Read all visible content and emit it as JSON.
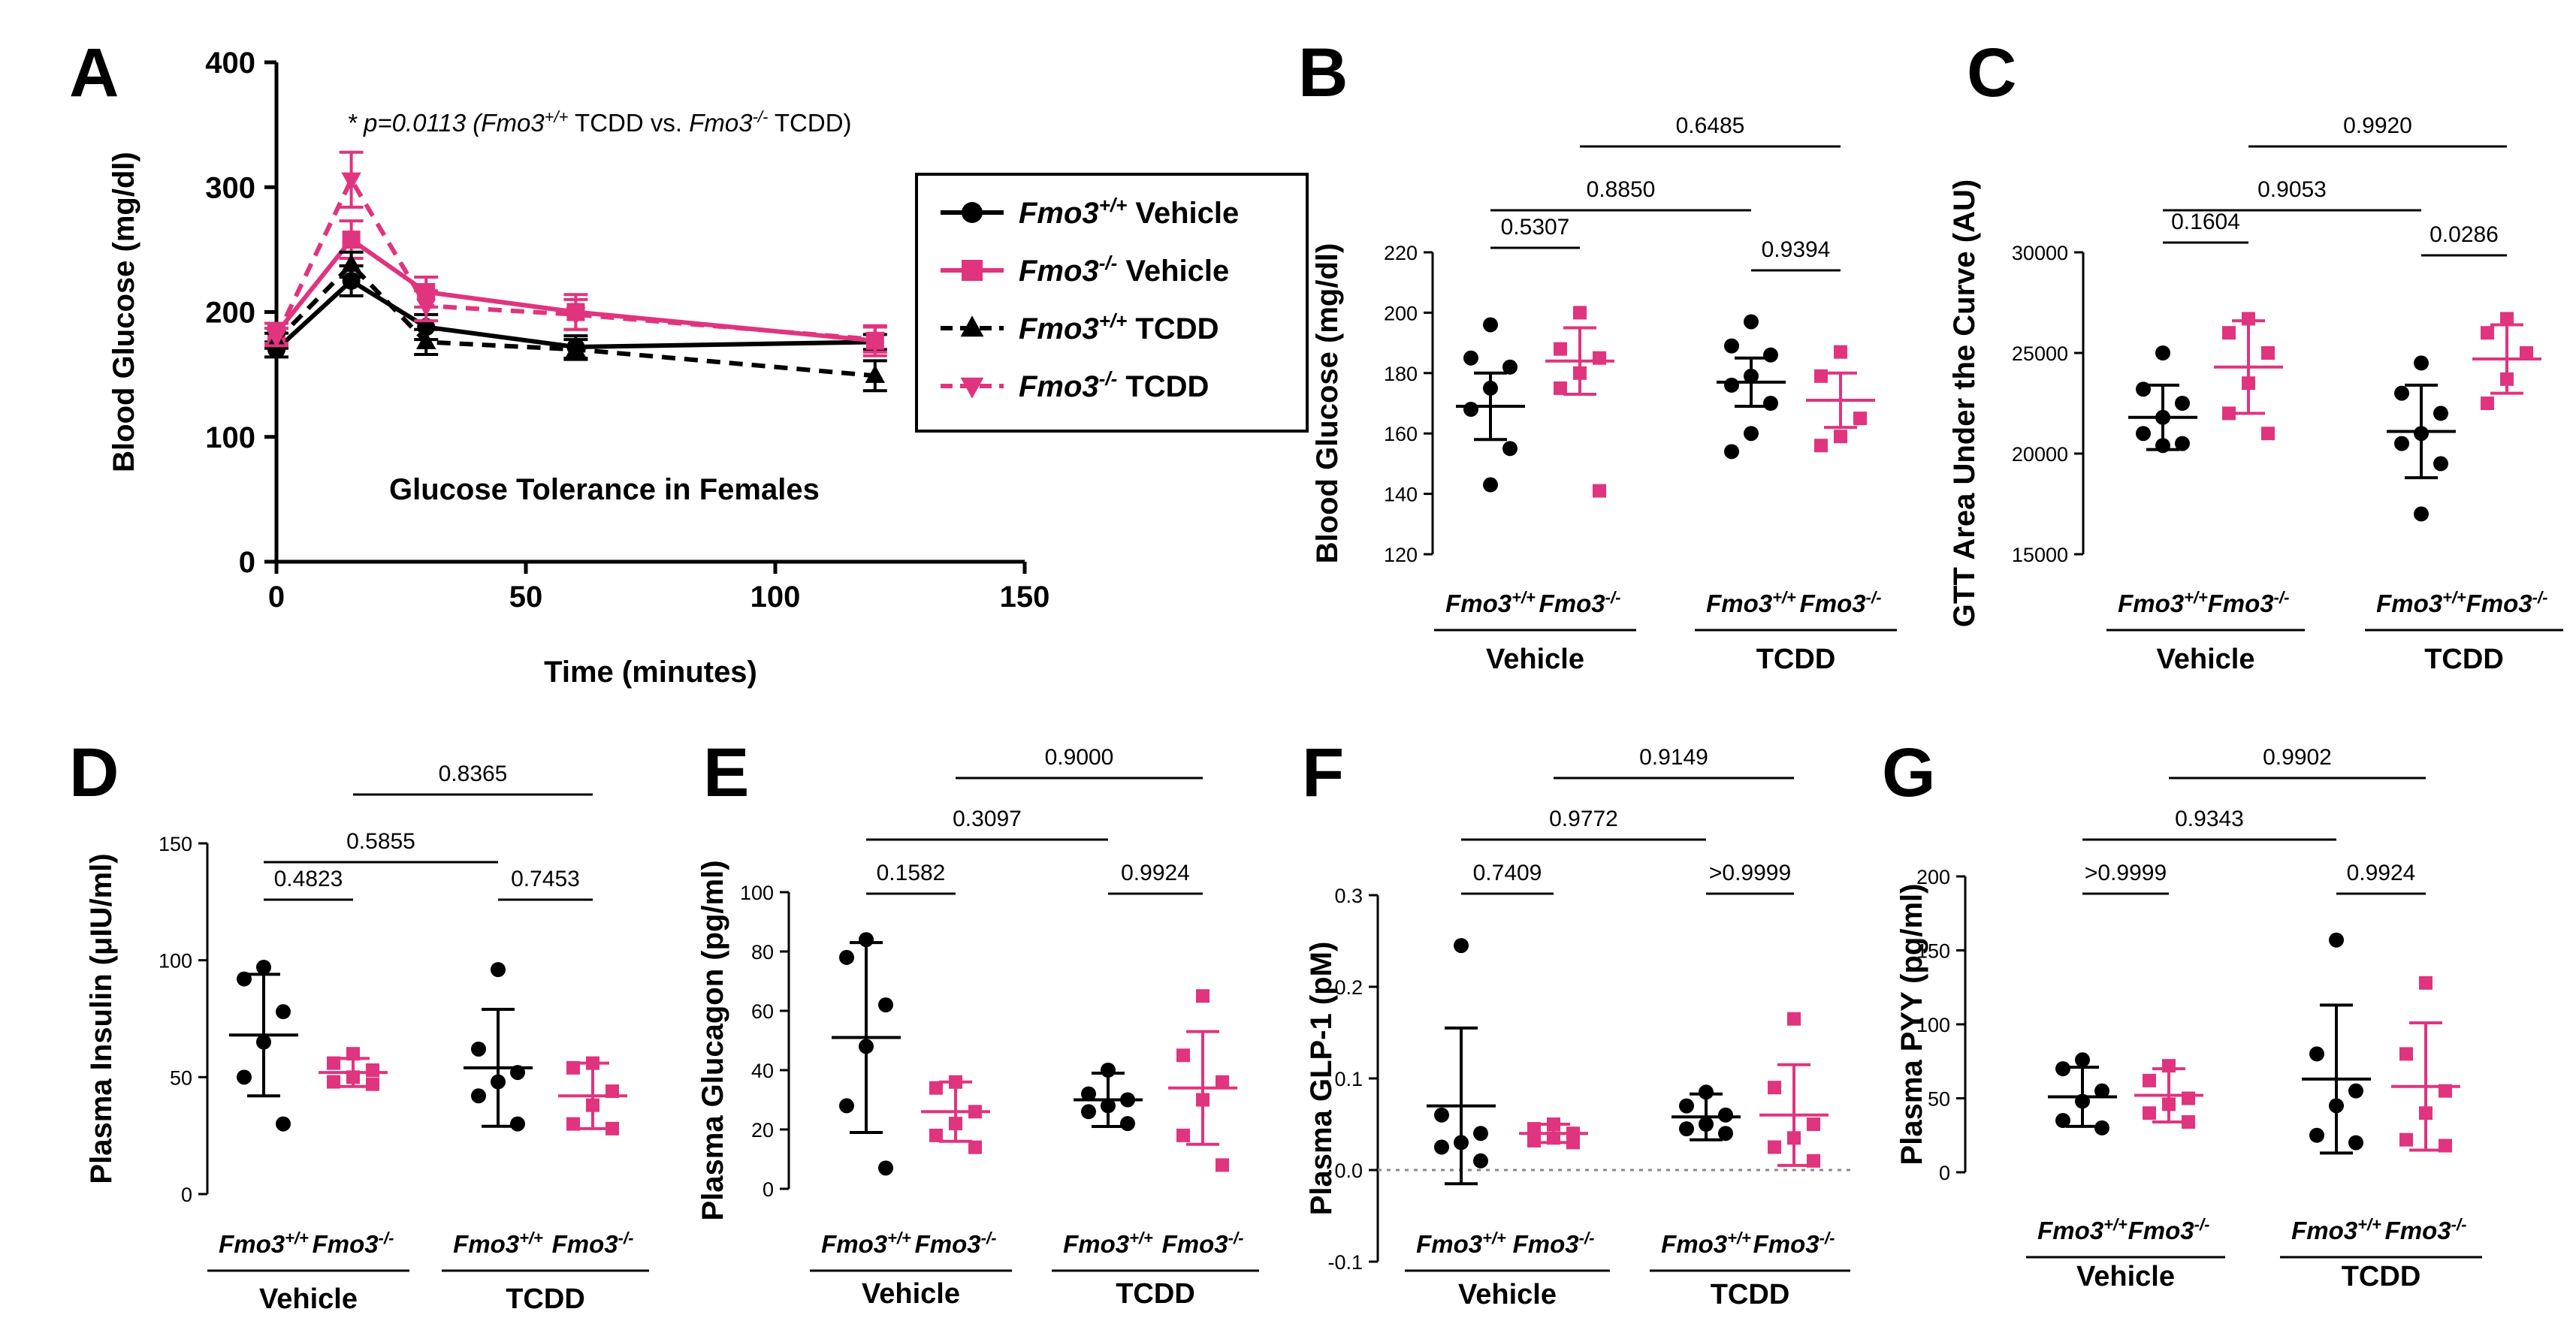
{
  "colors": {
    "wt": "#000000",
    "ko": "#e0347e"
  },
  "chart_data": [
    {
      "panel": "A",
      "type": "line",
      "title": "Glucose Tolerance in Females",
      "annotation": {
        "prefix": "* p=0.0113",
        "open": "(",
        "g1": "Fmo3",
        "g1sup": "+/+",
        "mid": " TCDD vs. ",
        "g2": "Fmo3",
        "g2sup": "-/-",
        "end": " TCDD)"
      },
      "xlabel": "Time (minutes)",
      "ylabel": "Blood Glucose (mg/dl)",
      "xlim": [
        0,
        150
      ],
      "ylim": [
        0,
        400
      ],
      "xticks": [
        0,
        50,
        100,
        150
      ],
      "yticks": [
        0,
        100,
        200,
        300,
        400
      ],
      "x": [
        0,
        15,
        30,
        60,
        120
      ],
      "series": [
        {
          "name": "Fmo3+/+ Vehicle",
          "geno": "Fmo3",
          "sup": "+/+",
          "treat": " Vehicle",
          "color_key": "wt",
          "dashed": false,
          "marker": "circle",
          "values": [
            170,
            225,
            188,
            172,
            176
          ],
          "err": [
            6,
            12,
            10,
            9,
            6
          ]
        },
        {
          "name": "Fmo3-/- Vehicle",
          "geno": "Fmo3",
          "sup": "-/-",
          "treat": " Vehicle",
          "color_key": "ko",
          "dashed": false,
          "marker": "square",
          "values": [
            183,
            258,
            216,
            200,
            177
          ],
          "err": [
            8,
            15,
            12,
            14,
            12
          ]
        },
        {
          "name": "Fmo3+/+ TCDD",
          "geno": "Fmo3",
          "sup": "+/+",
          "treat": " TCDD",
          "color_key": "wt",
          "dashed": true,
          "marker": "triangle-up",
          "values": [
            177,
            238,
            176,
            170,
            149
          ],
          "err": [
            6,
            10,
            10,
            8,
            12
          ]
        },
        {
          "name": "Fmo3-/- TCDD",
          "geno": "Fmo3",
          "sup": "-/-",
          "treat": " TCDD",
          "color_key": "ko",
          "dashed": true,
          "marker": "triangle-down",
          "values": [
            180,
            306,
            205,
            198,
            178
          ],
          "err": [
            7,
            22,
            12,
            12,
            10
          ]
        }
      ]
    },
    {
      "panel": "B",
      "type": "scatter",
      "ylabel": "Blood Glucose (mg/dl)",
      "ylim": [
        120,
        220
      ],
      "yticks": [
        120,
        140,
        160,
        180,
        200,
        220
      ],
      "groups": [
        "Vehicle",
        "TCDD"
      ],
      "genotypes": [
        {
          "name": "Fmo3",
          "sup": "+/+"
        },
        {
          "name": "Fmo3",
          "sup": "-/-"
        }
      ],
      "columns": [
        {
          "mean": 169,
          "sd": 11,
          "points": [
            196,
            185,
            182,
            175,
            168,
            155,
            143
          ]
        },
        {
          "mean": 184,
          "sd": 11,
          "points": [
            200,
            188,
            185,
            180,
            175,
            141
          ]
        },
        {
          "mean": 177,
          "sd": 8,
          "points": [
            197,
            189,
            186,
            179,
            176,
            170,
            160,
            154
          ]
        },
        {
          "mean": 171,
          "sd": 9,
          "points": [
            187,
            179,
            165,
            159,
            156
          ]
        }
      ],
      "comparisons": [
        {
          "a": 0,
          "b": 1,
          "label": "0.5307"
        },
        {
          "a": 2,
          "b": 3,
          "label": "0.9394"
        },
        {
          "a": 0,
          "b": 2,
          "label": "0.8850"
        },
        {
          "a": 1,
          "b": 3,
          "label": "0.6485"
        }
      ]
    },
    {
      "panel": "C",
      "type": "scatter",
      "ylabel": "GTT Area Under the Curve (AU)",
      "ylim": [
        15000,
        30000
      ],
      "yticks": [
        15000,
        20000,
        25000,
        30000
      ],
      "groups": [
        "Vehicle",
        "TCDD"
      ],
      "genotypes": [
        {
          "name": "Fmo3",
          "sup": "+/+"
        },
        {
          "name": "Fmo3",
          "sup": "-/-"
        }
      ],
      "columns": [
        {
          "mean": 21800,
          "sd": 1600,
          "points": [
            25000,
            23200,
            22500,
            21800,
            21000,
            20500,
            20400
          ]
        },
        {
          "mean": 24300,
          "sd": 2300,
          "points": [
            26700,
            26000,
            25000,
            23500,
            22000,
            21000
          ]
        },
        {
          "mean": 21100,
          "sd": 2300,
          "points": [
            24500,
            23000,
            22000,
            21000,
            20500,
            19500,
            17000
          ]
        },
        {
          "mean": 24700,
          "sd": 1700,
          "points": [
            26700,
            26000,
            25000,
            23700,
            22500
          ]
        }
      ],
      "comparisons": [
        {
          "a": 0,
          "b": 1,
          "label": "0.1604"
        },
        {
          "a": 2,
          "b": 3,
          "label": "0.0286"
        },
        {
          "a": 0,
          "b": 2,
          "label": "0.9053"
        },
        {
          "a": 1,
          "b": 3,
          "label": "0.9920"
        }
      ]
    },
    {
      "panel": "D",
      "type": "scatter",
      "ylabel": "Plasma Insulin (μIU/ml)",
      "ylim": [
        0,
        150
      ],
      "yticks": [
        0,
        50,
        100,
        150
      ],
      "groups": [
        "Vehicle",
        "TCDD"
      ],
      "genotypes": [
        {
          "name": "Fmo3",
          "sup": "+/+"
        },
        {
          "name": "Fmo3",
          "sup": "-/-"
        }
      ],
      "columns": [
        {
          "mean": 68,
          "sd": 26,
          "points": [
            97,
            92,
            78,
            65,
            50,
            30
          ]
        },
        {
          "mean": 52,
          "sd": 6,
          "points": [
            60,
            56,
            53,
            50,
            48,
            47
          ]
        },
        {
          "mean": 54,
          "sd": 25,
          "points": [
            96,
            62,
            52,
            48,
            42,
            30
          ]
        },
        {
          "mean": 42,
          "sd": 14,
          "points": [
            56,
            54,
            44,
            38,
            30,
            28
          ]
        }
      ],
      "comparisons": [
        {
          "a": 0,
          "b": 1,
          "label": "0.4823"
        },
        {
          "a": 2,
          "b": 3,
          "label": "0.7453"
        },
        {
          "a": 0,
          "b": 2,
          "label": "0.5855"
        },
        {
          "a": 1,
          "b": 3,
          "label": "0.8365"
        }
      ]
    },
    {
      "panel": "E",
      "type": "scatter",
      "ylabel": "Plasma Glucagon (pg/ml)",
      "ylim": [
        0,
        100
      ],
      "yticks": [
        0,
        20,
        40,
        60,
        80,
        100
      ],
      "groups": [
        "Vehicle",
        "TCDD"
      ],
      "genotypes": [
        {
          "name": "Fmo3",
          "sup": "+/+"
        },
        {
          "name": "Fmo3",
          "sup": "-/-"
        }
      ],
      "columns": [
        {
          "mean": 51,
          "sd": 32,
          "points": [
            84,
            78,
            62,
            48,
            28,
            7
          ]
        },
        {
          "mean": 26,
          "sd": 10,
          "points": [
            36,
            34,
            26,
            22,
            18,
            14
          ]
        },
        {
          "mean": 30,
          "sd": 9,
          "points": [
            40,
            32,
            30,
            28,
            26,
            22
          ]
        },
        {
          "mean": 34,
          "sd": 19,
          "points": [
            65,
            45,
            36,
            30,
            18,
            8
          ]
        }
      ],
      "comparisons": [
        {
          "a": 0,
          "b": 1,
          "label": "0.1582"
        },
        {
          "a": 2,
          "b": 3,
          "label": "0.9924"
        },
        {
          "a": 0,
          "b": 2,
          "label": "0.3097"
        },
        {
          "a": 1,
          "b": 3,
          "label": "0.9000"
        }
      ]
    },
    {
      "panel": "F",
      "type": "scatter",
      "ylabel": "Plasma GLP-1 (pM)",
      "ylim": [
        -0.1,
        0.3
      ],
      "yticks": [
        -0.1,
        0.0,
        0.1,
        0.2,
        0.3
      ],
      "zero_line": true,
      "groups": [
        "Vehicle",
        "TCDD"
      ],
      "genotypes": [
        {
          "name": "Fmo3",
          "sup": "+/+"
        },
        {
          "name": "Fmo3",
          "sup": "-/-"
        }
      ],
      "columns": [
        {
          "mean": 0.07,
          "sd": 0.085,
          "points": [
            0.245,
            0.06,
            0.04,
            0.03,
            0.025,
            0.01
          ]
        },
        {
          "mean": 0.04,
          "sd": 0.01,
          "points": [
            0.05,
            0.045,
            0.04,
            0.035,
            0.032,
            0.03
          ]
        },
        {
          "mean": 0.058,
          "sd": 0.025,
          "points": [
            0.085,
            0.07,
            0.06,
            0.05,
            0.045,
            0.04
          ]
        },
        {
          "mean": 0.06,
          "sd": 0.055,
          "points": [
            0.165,
            0.09,
            0.05,
            0.035,
            0.025,
            0.01
          ]
        }
      ],
      "comparisons": [
        {
          "a": 0,
          "b": 1,
          "label": "0.7409"
        },
        {
          "a": 2,
          "b": 3,
          "label": ">0.9999"
        },
        {
          "a": 0,
          "b": 2,
          "label": "0.9772"
        },
        {
          "a": 1,
          "b": 3,
          "label": "0.9149"
        }
      ]
    },
    {
      "panel": "G",
      "type": "scatter",
      "ylabel": "Plasma PYY (pg/ml)",
      "ylim": [
        0,
        200
      ],
      "yticks": [
        0,
        50,
        100,
        150,
        200
      ],
      "groups": [
        "Vehicle",
        "TCDD"
      ],
      "genotypes": [
        {
          "name": "Fmo3",
          "sup": "+/+"
        },
        {
          "name": "Fmo3",
          "sup": "-/-"
        }
      ],
      "columns": [
        {
          "mean": 51,
          "sd": 20,
          "points": [
            76,
            70,
            55,
            48,
            35,
            30
          ]
        },
        {
          "mean": 52,
          "sd": 18,
          "points": [
            72,
            62,
            50,
            46,
            40,
            34
          ]
        },
        {
          "mean": 63,
          "sd": 50,
          "points": [
            157,
            80,
            55,
            45,
            25,
            20
          ]
        },
        {
          "mean": 58,
          "sd": 43,
          "points": [
            128,
            80,
            55,
            40,
            22,
            18
          ]
        }
      ],
      "comparisons": [
        {
          "a": 0,
          "b": 1,
          "label": ">0.9999"
        },
        {
          "a": 2,
          "b": 3,
          "label": "0.9924"
        },
        {
          "a": 0,
          "b": 2,
          "label": "0.9343"
        },
        {
          "a": 1,
          "b": 3,
          "label": "0.9902"
        }
      ]
    }
  ]
}
